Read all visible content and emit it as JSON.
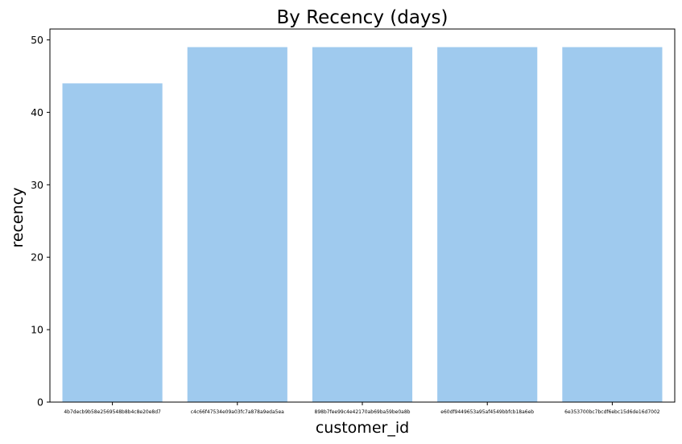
{
  "chart_data": {
    "type": "bar",
    "title": "By Recency (days)",
    "xlabel": "customer_id",
    "ylabel": "recency",
    "categories": [
      "4b7decb9b58e2569548b8b4c8e20e8d7",
      "c4c66f47534e09a03fc7a878a9eda5ea",
      "898b7fee99c4e42170ab69ba59be0a8b",
      "e60df9449653a95af4549bbfcb18a6eb",
      "6e353700bc7bcdf6ebc15d6de16d7002"
    ],
    "values": [
      44,
      49,
      49,
      49,
      49
    ],
    "ylim": [
      0,
      51.5
    ],
    "yticks": [
      0,
      10,
      20,
      30,
      40,
      50
    ],
    "bar_color": "#9fcaee",
    "grid": false,
    "legend": "none"
  }
}
